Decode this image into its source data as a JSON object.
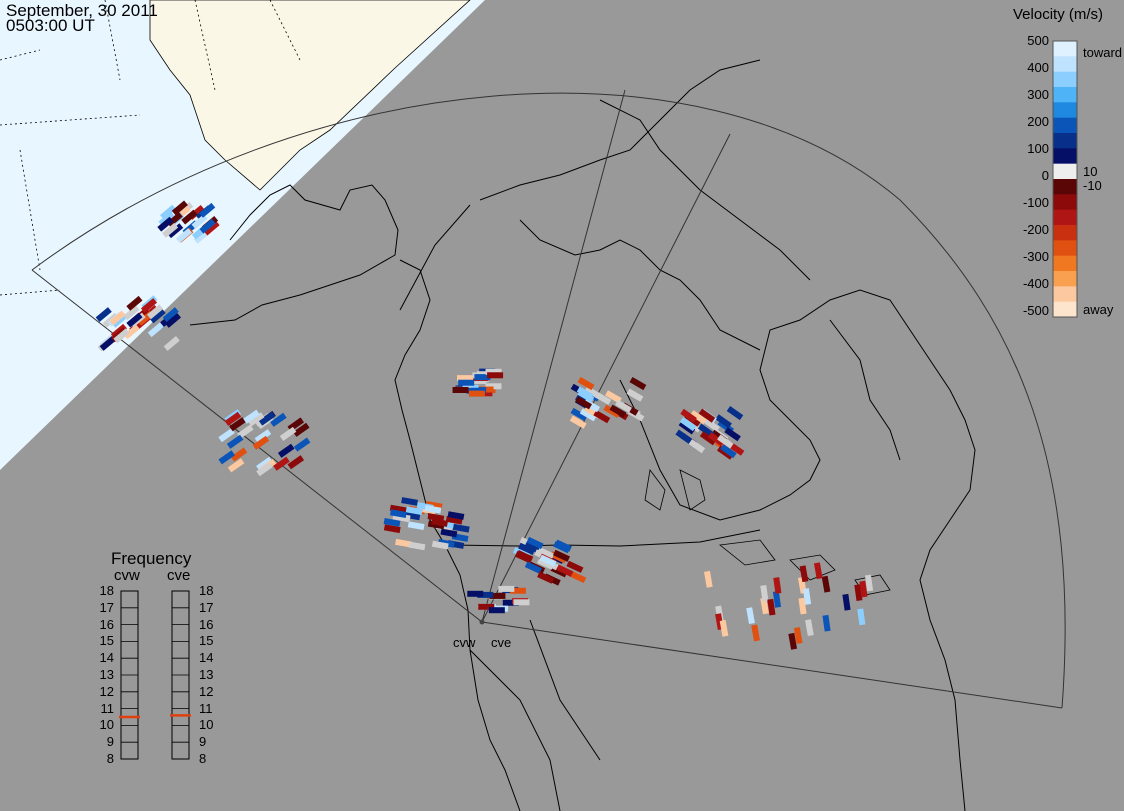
{
  "header": {
    "date": "September, 30 2011",
    "time": "0503:00 UT"
  },
  "sites": [
    {
      "name": "cvw"
    },
    {
      "name": "cve"
    }
  ],
  "velocity_scale": {
    "title": "Velocity (m/s)",
    "ticks": [
      "500",
      "400",
      "300",
      "200",
      "100",
      "10",
      "0",
      "-10",
      "-100",
      "-200",
      "-300",
      "-400",
      "-500"
    ],
    "toward_label": "toward",
    "away_label": "away",
    "colors": [
      "#dff0ff",
      "#bfe2ff",
      "#8ccfff",
      "#4fb3f7",
      "#1f88e0",
      "#0b55b8",
      "#08308a",
      "#060f66",
      "#eeeeee",
      "#5a0606",
      "#8c0a0a",
      "#b01515",
      "#c83010",
      "#e05010",
      "#f07820",
      "#f8a050",
      "#fcc8a0",
      "#fde4cc"
    ]
  },
  "frequency_scale": {
    "title": "Frequency",
    "radars": [
      {
        "name": "cvw",
        "value_mhz": 10.5
      },
      {
        "name": "cve",
        "value_mhz": 10.6
      }
    ],
    "ticks": [
      "18",
      "17",
      "16",
      "15",
      "14",
      "13",
      "12",
      "11",
      "10",
      "9",
      "8"
    ]
  }
}
